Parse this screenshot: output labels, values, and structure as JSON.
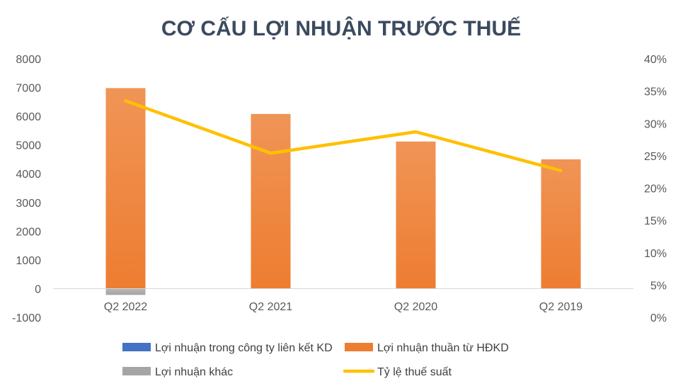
{
  "chart_data": {
    "type": "bar",
    "title": "CƠ CẤU LỢI NHUẬN TRƯỚC THUẾ",
    "categories": [
      "Q2 2022",
      "Q2 2021",
      "Q2 2020",
      "Q2 2019"
    ],
    "series": [
      {
        "name": "Lợi nhuận trong công ty liên kết KD",
        "type": "bar",
        "axis": "left",
        "color": "#4472c4",
        "values": [
          0,
          0,
          0,
          0
        ]
      },
      {
        "name": "Lợi nhuận thuần từ HĐKD",
        "type": "bar",
        "axis": "left",
        "color": "#ed7d31",
        "values": [
          6980,
          6080,
          5120,
          4500
        ]
      },
      {
        "name": "Lợi nhuận khác",
        "type": "bar",
        "axis": "left",
        "color": "#a5a5a5",
        "values": [
          -220,
          0,
          0,
          0
        ]
      },
      {
        "name": "Tỷ lệ thuế suất",
        "type": "line",
        "axis": "right",
        "color": "#ffc000",
        "values": [
          0.335,
          0.254,
          0.287,
          0.227
        ]
      }
    ],
    "y_left": {
      "min": -1000,
      "max": 8000,
      "ticks": [
        "8000",
        "7000",
        "6000",
        "5000",
        "4000",
        "3000",
        "2000",
        "1000",
        "0",
        "-1000"
      ]
    },
    "y_right": {
      "min": 0,
      "max": 0.4,
      "ticks": [
        "40%",
        "35%",
        "30%",
        "25%",
        "20%",
        "15%",
        "10%",
        "5%",
        "0%"
      ]
    },
    "grid": false,
    "legend_position": "bottom"
  }
}
